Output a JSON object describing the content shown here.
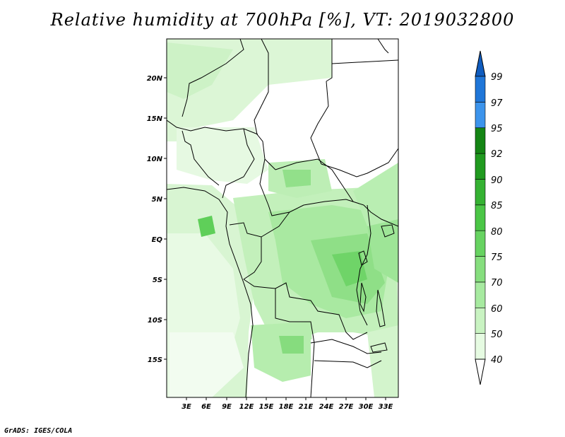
{
  "title": "Relative humidity at 700hPa [%], VT: 2019032800",
  "credit": "GrADS: IGES/COLA",
  "map": {
    "lat_ticks": [
      "20N",
      "15N",
      "10N",
      "5N",
      "EQ",
      "5S",
      "10S",
      "15S"
    ],
    "lon_ticks": [
      "3E",
      "6E",
      "9E",
      "12E",
      "15E",
      "18E",
      "21E",
      "24E",
      "27E",
      "30E",
      "33E"
    ]
  },
  "colorbar": {
    "labels": [
      "40",
      "50",
      "60",
      "70",
      "75",
      "80",
      "85",
      "90",
      "92",
      "95",
      "97",
      "99"
    ],
    "colors": [
      "#e6fbe2",
      "#c9f3c2",
      "#a7eaa0",
      "#86de7e",
      "#67d361",
      "#4bc646",
      "#35b232",
      "#209a1f",
      "#148514",
      "#3c94ec",
      "#1f76d8",
      "#0f5cbf"
    ]
  }
}
